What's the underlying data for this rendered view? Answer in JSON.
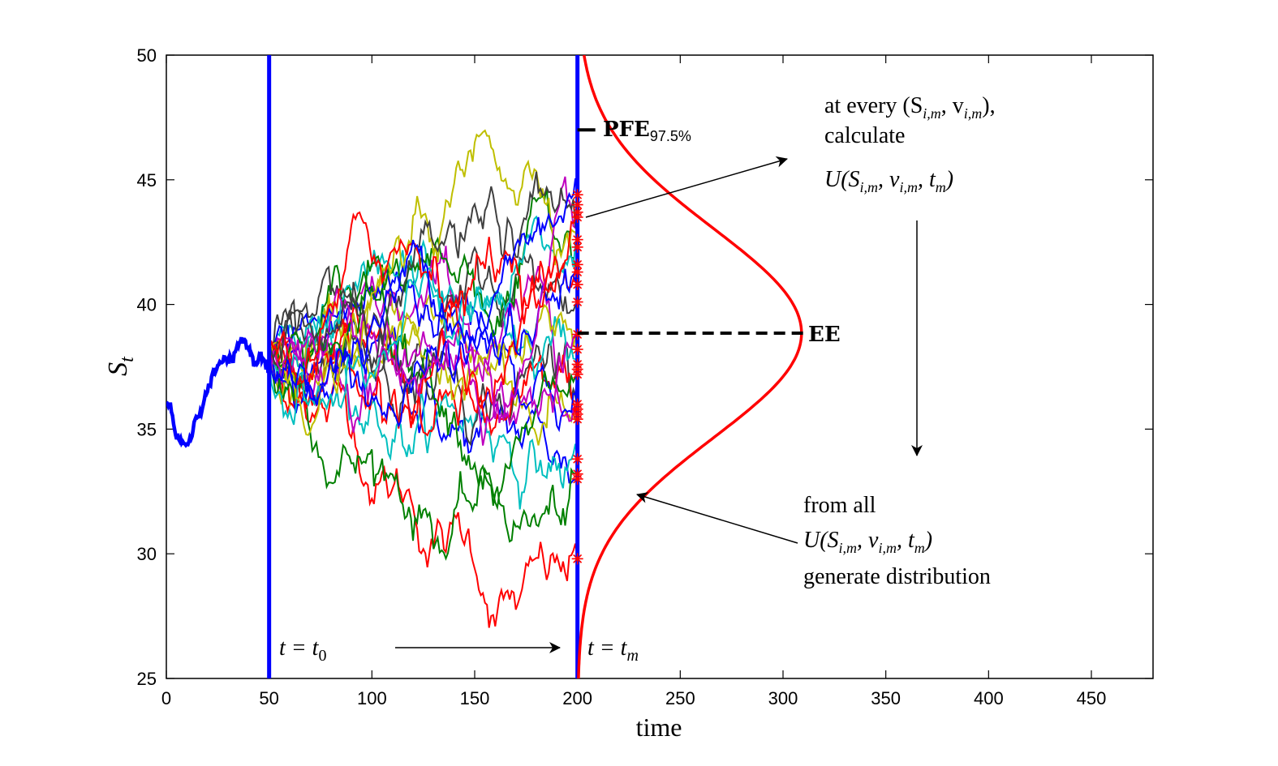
{
  "chart_data": {
    "type": "line",
    "xlabel": "time",
    "ylabel": "S",
    "ylabel_sub": "t",
    "xlim": [
      0,
      480
    ],
    "ylim": [
      25,
      50
    ],
    "xticks": [
      0,
      50,
      100,
      150,
      200,
      250,
      300,
      350,
      400,
      450
    ],
    "yticks": [
      25,
      30,
      35,
      40,
      45,
      50
    ],
    "history_path": {
      "color": "#0000ff",
      "points": [
        [
          0,
          36.1
        ],
        [
          2,
          36.0
        ],
        [
          4,
          35.0
        ],
        [
          6,
          34.6
        ],
        [
          8,
          34.5
        ],
        [
          10,
          34.4
        ],
        [
          12,
          34.6
        ],
        [
          14,
          35.4
        ],
        [
          16,
          35.5
        ],
        [
          18,
          36.0
        ],
        [
          20,
          36.5
        ],
        [
          22,
          37.1
        ],
        [
          24,
          37.3
        ],
        [
          26,
          37.7
        ],
        [
          28,
          37.9
        ],
        [
          30,
          37.8
        ],
        [
          32,
          37.8
        ],
        [
          34,
          38.2
        ],
        [
          36,
          38.5
        ],
        [
          38,
          38.6
        ],
        [
          40,
          38.2
        ],
        [
          42,
          37.9
        ],
        [
          44,
          37.6
        ],
        [
          46,
          38.1
        ],
        [
          48,
          37.7
        ],
        [
          50,
          37.4
        ]
      ]
    },
    "t0": 50,
    "tm": 200,
    "t0_label": "t = t",
    "t0_label_sub": "0",
    "tm_label": "t = t",
    "tm_label_sub": "m",
    "start_value": 38.0,
    "path_colors": [
      "#ff0000",
      "#0000ff",
      "#008000",
      "#00bfbf",
      "#bfbf00",
      "#bf00bf",
      "#404040"
    ],
    "endpoints": [
      29.8,
      33.0,
      33.2,
      33.8,
      35.4,
      35.6,
      35.8,
      36.0,
      37.2,
      37.4,
      37.6,
      38.2,
      38.8,
      40.1,
      40.8,
      41.3,
      41.6,
      42.3,
      42.6,
      43.5,
      43.7,
      44.0,
      44.4
    ],
    "ee_value": 38.85,
    "ee_label": "EE",
    "pfe_value": 47.0,
    "pfe_label": "PFE",
    "pfe_sub": "97.5%",
    "distribution": {
      "mean": 38.85,
      "sd": 4.2,
      "peak_time": 309,
      "base_time": 200,
      "color": "#ff0000"
    }
  },
  "annotations": {
    "top_line1": "at every (S",
    "top_line1_sub1": "i,m",
    "top_line1_mid": ", v",
    "top_line1_sub2": "i,m",
    "top_line1_end": "),",
    "top_line2": "calculate",
    "top_line3": "U(S",
    "top_line3_sub1": "i,m",
    "top_line3_mid1": ", v",
    "top_line3_sub2": "i,m",
    "top_line3_mid2": ", t",
    "top_line3_sub3": "m",
    "top_line3_end": ")",
    "bottom_line1": "from all",
    "bottom_line2": "U(S",
    "bottom_line2_sub1": "i,m",
    "bottom_line2_mid1": ", v",
    "bottom_line2_sub2": "i,m",
    "bottom_line2_mid2": ", t",
    "bottom_line2_sub3": "m",
    "bottom_line2_end": ")",
    "bottom_line3": "generate distribution"
  }
}
